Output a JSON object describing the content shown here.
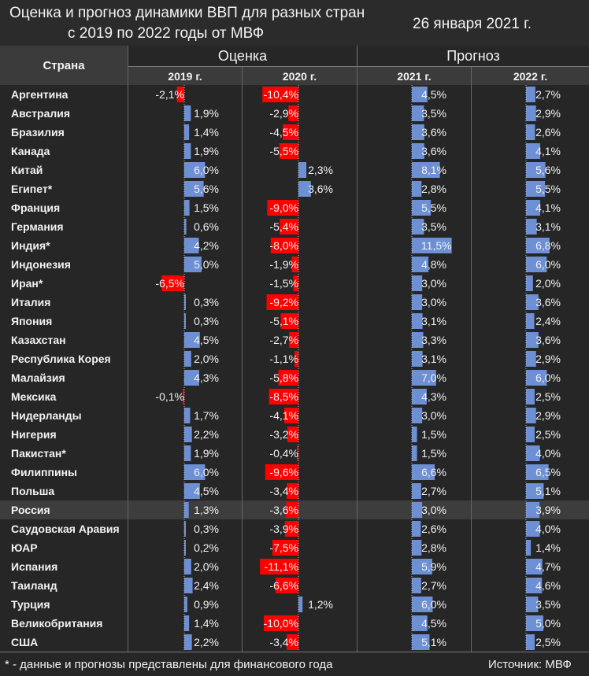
{
  "header": {
    "title_line1": "Оценка и прогноз динамики ВВП для разных стран",
    "title_line2": "с 2019 по 2022 годы от МВФ",
    "date": "26 января 2021 г."
  },
  "table_header": {
    "country_label": "Страна",
    "group_estimate": "Оценка",
    "group_forecast": "Прогноз",
    "years": [
      "2019 г.",
      "2020 г.",
      "2021 г.",
      "2022 г."
    ]
  },
  "footer": {
    "footnote": "* - данные и прогнозы представлены для финансового года",
    "source": "Источник: МВФ"
  },
  "colors": {
    "positive_bar": "#6d8fd4",
    "negative_bar": "#ff0000",
    "highlight_row": "#3d3d3d",
    "background": "#262626"
  },
  "chart_data": {
    "type": "table",
    "unit": "%",
    "highlight_country": "Россия",
    "columns": [
      "2019 г.",
      "2020 г.",
      "2021 г.",
      "2022 г."
    ],
    "rows": [
      {
        "country": "Аргентина",
        "values": [
          -2.1,
          -10.4,
          4.5,
          2.7
        ],
        "labels": [
          "-2,1%",
          "-10,4%",
          "4,5%",
          "2,7%"
        ]
      },
      {
        "country": "Австралия",
        "values": [
          1.9,
          -2.9,
          3.5,
          2.9
        ],
        "labels": [
          "1,9%",
          "-2,9%",
          "3,5%",
          "2,9%"
        ]
      },
      {
        "country": "Бразилия",
        "values": [
          1.4,
          -4.5,
          3.6,
          2.6
        ],
        "labels": [
          "1,4%",
          "-4,5%",
          "3,6%",
          "2,6%"
        ]
      },
      {
        "country": "Канада",
        "values": [
          1.9,
          -5.5,
          3.6,
          4.1
        ],
        "labels": [
          "1,9%",
          "-5,5%",
          "3,6%",
          "4,1%"
        ]
      },
      {
        "country": "Китай",
        "values": [
          6.0,
          2.3,
          8.1,
          5.6
        ],
        "labels": [
          "6,0%",
          "2,3%",
          "8,1%",
          "5,6%"
        ]
      },
      {
        "country": "Египет*",
        "values": [
          5.6,
          3.6,
          2.8,
          5.5
        ],
        "labels": [
          "5,6%",
          "3,6%",
          "2,8%",
          "5,5%"
        ]
      },
      {
        "country": "Франция",
        "values": [
          1.5,
          -9.0,
          5.5,
          4.1
        ],
        "labels": [
          "1,5%",
          "-9,0%",
          "5,5%",
          "4,1%"
        ]
      },
      {
        "country": "Германия",
        "values": [
          0.6,
          -5.4,
          3.5,
          3.1
        ],
        "labels": [
          "0,6%",
          "-5,4%",
          "3,5%",
          "3,1%"
        ]
      },
      {
        "country": "Индия*",
        "values": [
          4.2,
          -8.0,
          11.5,
          6.8
        ],
        "labels": [
          "4,2%",
          "-8,0%",
          "11,5%",
          "6,8%"
        ]
      },
      {
        "country": "Индонезия",
        "values": [
          5.0,
          -1.9,
          4.8,
          6.0
        ],
        "labels": [
          "5,0%",
          "-1,9%",
          "4,8%",
          "6,0%"
        ]
      },
      {
        "country": "Иран*",
        "values": [
          -6.5,
          -1.5,
          3.0,
          2.0
        ],
        "labels": [
          "-6,5%",
          "-1,5%",
          "3,0%",
          "2,0%"
        ]
      },
      {
        "country": "Италия",
        "values": [
          0.3,
          -9.2,
          3.0,
          3.6
        ],
        "labels": [
          "0,3%",
          "-9,2%",
          "3,0%",
          "3,6%"
        ]
      },
      {
        "country": "Япония",
        "values": [
          0.3,
          -5.1,
          3.1,
          2.4
        ],
        "labels": [
          "0,3%",
          "-5,1%",
          "3,1%",
          "2,4%"
        ]
      },
      {
        "country": "Казахстан",
        "values": [
          4.5,
          -2.7,
          3.3,
          3.6
        ],
        "labels": [
          "4,5%",
          "-2,7%",
          "3,3%",
          "3,6%"
        ]
      },
      {
        "country": "Республика Корея",
        "values": [
          2.0,
          -1.1,
          3.1,
          2.9
        ],
        "labels": [
          "2,0%",
          "-1,1%",
          "3,1%",
          "2,9%"
        ]
      },
      {
        "country": "Малайзия",
        "values": [
          4.3,
          -5.8,
          7.0,
          6.0
        ],
        "labels": [
          "4,3%",
          "-5,8%",
          "7,0%",
          "6,0%"
        ]
      },
      {
        "country": "Мексика",
        "values": [
          -0.1,
          -8.5,
          4.3,
          2.5
        ],
        "labels": [
          "-0,1%",
          "-8,5%",
          "4,3%",
          "2,5%"
        ]
      },
      {
        "country": "Нидерланды",
        "values": [
          1.7,
          -4.1,
          3.0,
          2.9
        ],
        "labels": [
          "1,7%",
          "-4,1%",
          "3,0%",
          "2,9%"
        ]
      },
      {
        "country": "Нигерия",
        "values": [
          2.2,
          -3.2,
          1.5,
          2.5
        ],
        "labels": [
          "2,2%",
          "-3,2%",
          "1,5%",
          "2,5%"
        ]
      },
      {
        "country": "Пакистан*",
        "values": [
          1.9,
          -0.4,
          1.5,
          4.0
        ],
        "labels": [
          "1,9%",
          "-0,4%",
          "1,5%",
          "4,0%"
        ]
      },
      {
        "country": "Филиппины",
        "values": [
          6.0,
          -9.6,
          6.6,
          6.5
        ],
        "labels": [
          "6,0%",
          "-9,6%",
          "6,6%",
          "6,5%"
        ]
      },
      {
        "country": "Польша",
        "values": [
          4.5,
          -3.4,
          2.7,
          5.1
        ],
        "labels": [
          "4,5%",
          "-3,4%",
          "2,7%",
          "5,1%"
        ]
      },
      {
        "country": "Россия",
        "values": [
          1.3,
          -3.6,
          3.0,
          3.9
        ],
        "labels": [
          "1,3%",
          "-3,6%",
          "3,0%",
          "3,9%"
        ]
      },
      {
        "country": "Саудовская Аравия",
        "values": [
          0.3,
          -3.9,
          2.6,
          4.0
        ],
        "labels": [
          "0,3%",
          "-3,9%",
          "2,6%",
          "4,0%"
        ]
      },
      {
        "country": "ЮАР",
        "values": [
          0.2,
          -7.5,
          2.8,
          1.4
        ],
        "labels": [
          "0,2%",
          "-7,5%",
          "2,8%",
          "1,4%"
        ]
      },
      {
        "country": "Испания",
        "values": [
          2.0,
          -11.1,
          5.9,
          4.7
        ],
        "labels": [
          "2,0%",
          "-11,1%",
          "5,9%",
          "4,7%"
        ]
      },
      {
        "country": "Таиланд",
        "values": [
          2.4,
          -6.6,
          2.7,
          4.6
        ],
        "labels": [
          "2,4%",
          "-6,6%",
          "2,7%",
          "4,6%"
        ]
      },
      {
        "country": "Турция",
        "values": [
          0.9,
          1.2,
          6.0,
          3.5
        ],
        "labels": [
          "0,9%",
          "1,2%",
          "6,0%",
          "3,5%"
        ]
      },
      {
        "country": "Великобритания",
        "values": [
          1.4,
          -10.0,
          4.5,
          5.0
        ],
        "labels": [
          "1,4%",
          "-10,0%",
          "4,5%",
          "5,0%"
        ]
      },
      {
        "country": "США",
        "values": [
          2.2,
          -3.4,
          5.1,
          2.5
        ],
        "labels": [
          "2,2%",
          "-3,4%",
          "5,1%",
          "2,5%"
        ]
      }
    ]
  }
}
